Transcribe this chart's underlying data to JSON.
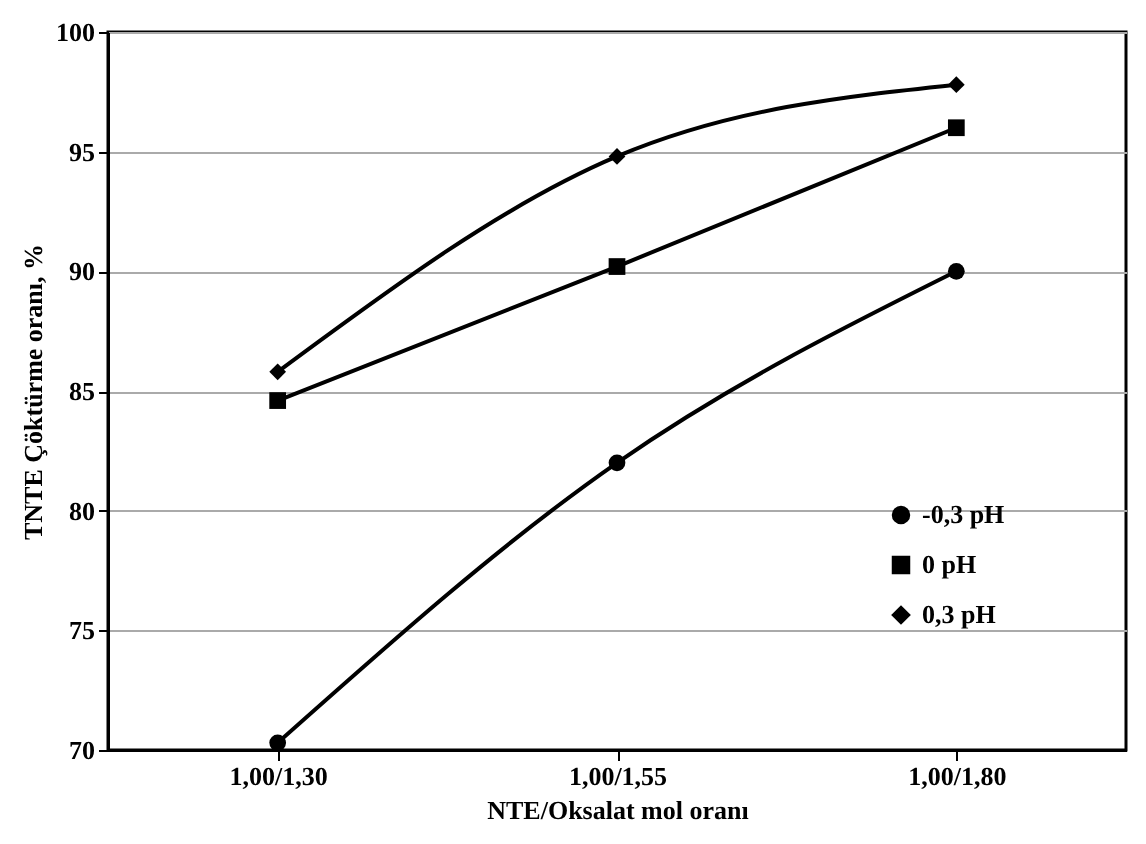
{
  "chart_data": {
    "type": "line",
    "xlabel": "NTE/Oksalat mol oranı",
    "ylabel": "TNTE Çöktürme oranı, %",
    "categories": [
      "1,00/1,30",
      "1,00/1,55",
      "1,00/1,80"
    ],
    "series": [
      {
        "name": "-0,3 pH",
        "color": "#000000",
        "marker": "circle",
        "values": [
          70.3,
          82.0,
          90.0
        ]
      },
      {
        "name": "0 pH",
        "color": "#000000",
        "marker": "square",
        "values": [
          84.6,
          90.2,
          96.0
        ]
      },
      {
        "name": "0,3 pH",
        "color": "#000000",
        "marker": "diamond",
        "values": [
          85.8,
          94.8,
          97.8
        ]
      }
    ],
    "ylim": [
      70,
      100
    ],
    "yticks": [
      70,
      75,
      80,
      85,
      90,
      95,
      100
    ],
    "grid": "y",
    "legend": "right",
    "line_style": "solid"
  }
}
